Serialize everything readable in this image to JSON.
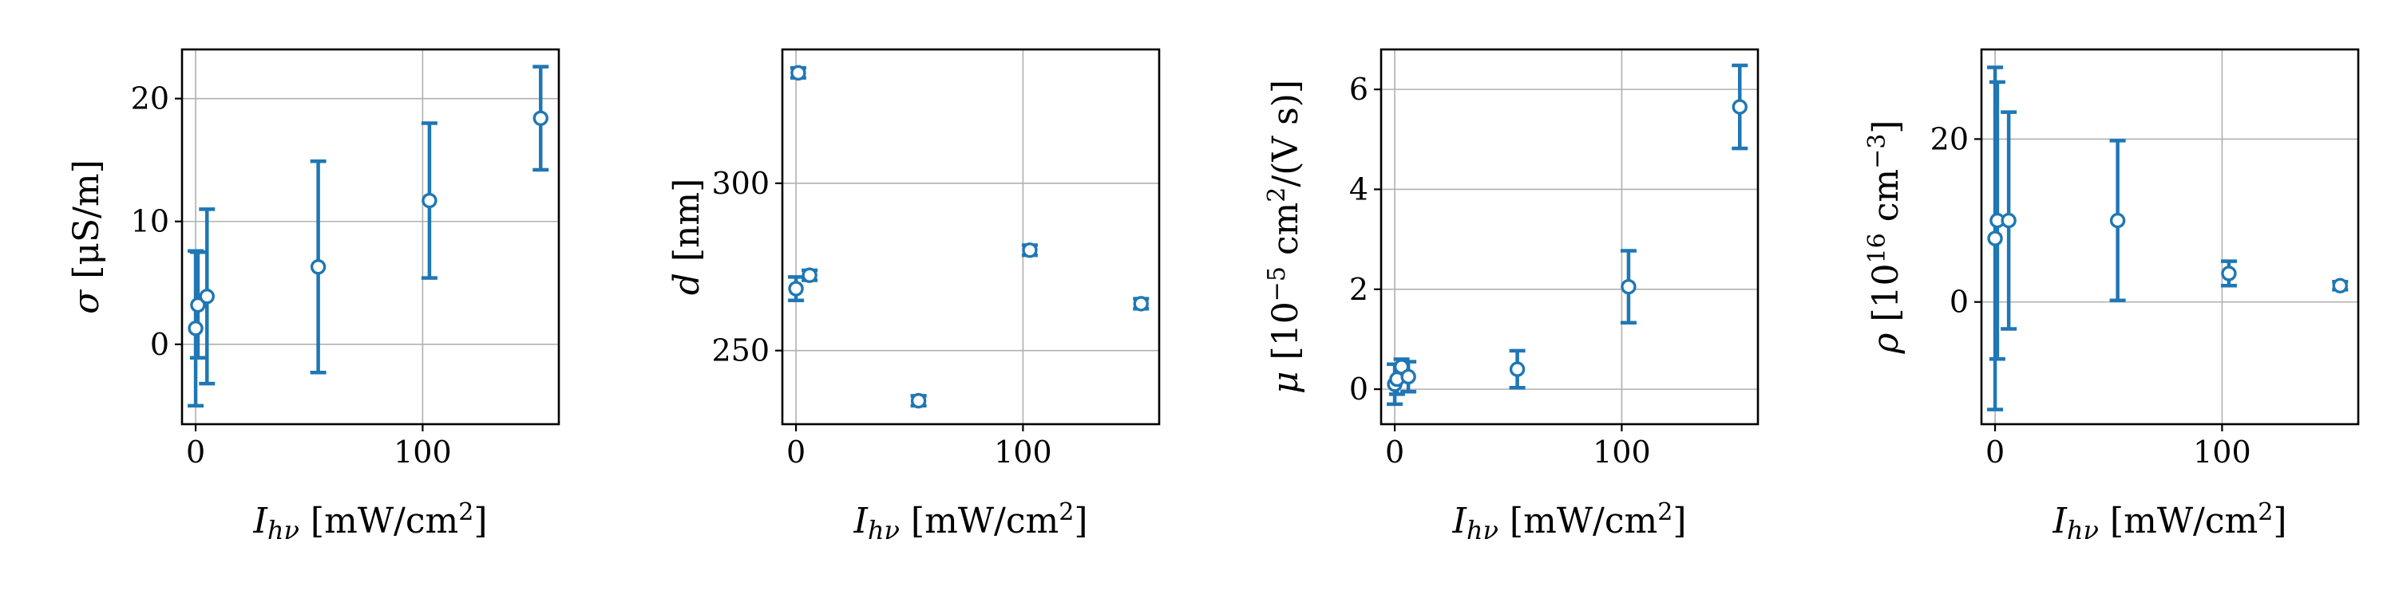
{
  "chart_data": [
    {
      "type": "scatter",
      "xlabel": "I_hν [mW/cm²]",
      "ylabel": "σ [μS/m]",
      "xlim": [
        -6,
        160
      ],
      "ylim": [
        -6.5,
        24
      ],
      "xticks": [
        0,
        100
      ],
      "yticks": [
        0,
        10,
        20
      ],
      "grid": true,
      "points": [
        {
          "x": 0,
          "y": 1.3,
          "err": 6.3
        },
        {
          "x": 1,
          "y": 3.2,
          "err": 4.3
        },
        {
          "x": 5,
          "y": 3.9,
          "err": 7.1
        },
        {
          "x": 54,
          "y": 6.3,
          "err": 8.6
        },
        {
          "x": 103,
          "y": 11.7,
          "err": 6.3
        },
        {
          "x": 152,
          "y": 18.4,
          "err": 4.2
        }
      ]
    },
    {
      "type": "scatter",
      "xlabel": "I_hν [mW/cm²]",
      "ylabel": "d [nm]",
      "xlim": [
        -6,
        160
      ],
      "ylim": [
        228,
        340
      ],
      "xticks": [
        0,
        100
      ],
      "yticks": [
        250,
        300
      ],
      "grid": true,
      "points": [
        {
          "x": 1,
          "y": 333,
          "err": 1.5
        },
        {
          "x": 0,
          "y": 268.5,
          "err": 3.5
        },
        {
          "x": 6,
          "y": 272.5,
          "err": 1.5
        },
        {
          "x": 54,
          "y": 235,
          "err": 1.5
        },
        {
          "x": 103,
          "y": 280,
          "err": 1.5
        },
        {
          "x": 152,
          "y": 264,
          "err": 1.5
        }
      ]
    },
    {
      "type": "scatter",
      "xlabel": "I_hν [mW/cm²]",
      "ylabel": "μ [10⁻⁵ cm²/(V s)]",
      "xlim": [
        -6,
        160
      ],
      "ylim": [
        -0.7,
        6.8
      ],
      "xticks": [
        0,
        100
      ],
      "yticks": [
        0,
        2,
        4,
        6
      ],
      "grid": true,
      "points": [
        {
          "x": 0,
          "y": 0.1,
          "err": 0.4
        },
        {
          "x": 1,
          "y": 0.2,
          "err": 0.3
        },
        {
          "x": 3,
          "y": 0.45,
          "err": 0.15
        },
        {
          "x": 6,
          "y": 0.25,
          "err": 0.3
        },
        {
          "x": 54,
          "y": 0.4,
          "err": 0.37
        },
        {
          "x": 103,
          "y": 2.05,
          "err": 0.72
        },
        {
          "x": 152,
          "y": 5.65,
          "err": 0.83
        }
      ]
    },
    {
      "type": "scatter",
      "xlabel": "I_hν [mW/cm²]",
      "ylabel": "ρ [10¹⁶ cm⁻³]",
      "xlim": [
        -6,
        160
      ],
      "ylim": [
        -15,
        31
      ],
      "xticks": [
        0,
        100
      ],
      "yticks": [
        0,
        20
      ],
      "grid": true,
      "points": [
        {
          "x": 0,
          "y": 7.8,
          "err": 21
        },
        {
          "x": 1,
          "y": 10,
          "err": 17
        },
        {
          "x": 6,
          "y": 10,
          "err": 13.3
        },
        {
          "x": 54,
          "y": 10,
          "err": 9.8
        },
        {
          "x": 103,
          "y": 3.5,
          "err": 1.5
        },
        {
          "x": 152,
          "y": 2,
          "err": 0.5
        }
      ]
    }
  ]
}
